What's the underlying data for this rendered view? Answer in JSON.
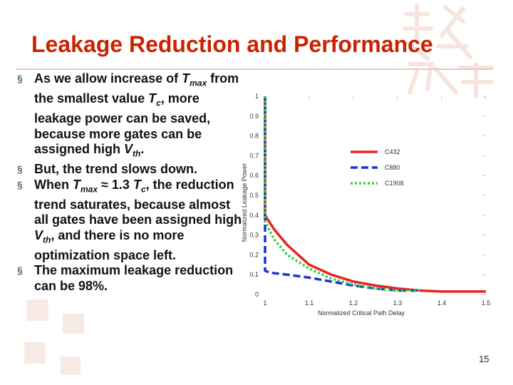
{
  "slide": {
    "title": "Leakage Reduction and Performance",
    "page_number": "15",
    "colors": {
      "title": "#cc2200",
      "text": "#111111",
      "bullet_marker": "#5a6a7a"
    }
  },
  "bullets": [
    {
      "parts": [
        {
          "t": "As we allow increase of "
        },
        {
          "t": "T",
          "i": true
        },
        {
          "t": "max",
          "i": true,
          "sub": true
        },
        {
          "t": " from the smallest value "
        },
        {
          "t": "T",
          "i": true
        },
        {
          "t": "c",
          "i": true,
          "sub": true
        },
        {
          "t": ", more leakage power can be saved, because more gates can be assigned high "
        },
        {
          "t": "V",
          "i": true
        },
        {
          "t": "th",
          "i": true,
          "sub": true
        },
        {
          "t": "."
        }
      ]
    },
    {
      "parts": [
        {
          "t": "But, the trend slows down."
        }
      ]
    },
    {
      "parts": [
        {
          "t": "When "
        },
        {
          "t": "T",
          "i": true
        },
        {
          "t": "max",
          "i": true,
          "sub": true
        },
        {
          "t": " ≈ 1.3 "
        },
        {
          "t": "T",
          "i": true
        },
        {
          "t": "c",
          "i": true,
          "sub": true
        },
        {
          "t": ", the reduction trend saturates, because almost all gates have been assigned high "
        },
        {
          "t": "V",
          "i": true
        },
        {
          "t": "th",
          "i": true,
          "sub": true
        },
        {
          "t": ", and there is no more optimization space left."
        }
      ]
    },
    {
      "parts": [
        {
          "t": "The maximum leakage reduction can be 98%."
        }
      ]
    }
  ],
  "chart_data": {
    "type": "line",
    "xlabel": "Normalized Critical Path Delay",
    "ylabel": "Normalized Leakage Power",
    "xlim": [
      1,
      1.5
    ],
    "ylim": [
      0,
      1
    ],
    "xticks": [
      "1",
      "1.1",
      "1.2",
      "1.3",
      "1.4",
      "1.5"
    ],
    "yticks": [
      "0",
      "0.1",
      "0.2",
      "0.3",
      "0.4",
      "0.5",
      "0.6",
      "0.7",
      "0.8",
      "0.9",
      "1"
    ],
    "legend": "upper-right",
    "series": [
      {
        "name": "C432",
        "color": "#e8231f",
        "dash": "solid",
        "x": [
          1.0,
          1.0,
          1.02,
          1.05,
          1.08,
          1.1,
          1.15,
          1.2,
          1.25,
          1.3,
          1.35,
          1.4,
          1.45,
          1.5
        ],
        "y": [
          1.0,
          0.4,
          0.33,
          0.25,
          0.19,
          0.15,
          0.1,
          0.065,
          0.045,
          0.03,
          0.02,
          0.015,
          0.015,
          0.015
        ]
      },
      {
        "name": "C880",
        "color": "#1f2fd6",
        "dash": "dash",
        "x": [
          1.0,
          1.0,
          1.01,
          1.05,
          1.1,
          1.15,
          1.2,
          1.25,
          1.3,
          1.35
        ],
        "y": [
          1.0,
          0.12,
          0.11,
          0.1,
          0.085,
          0.065,
          0.045,
          0.03,
          0.02,
          0.02
        ]
      },
      {
        "name": "C1908",
        "color": "#3ccf3c",
        "dash": "dot",
        "x": [
          1.0,
          1.0,
          1.02,
          1.05,
          1.1,
          1.15,
          1.2,
          1.25,
          1.3,
          1.35
        ],
        "y": [
          1.0,
          0.37,
          0.28,
          0.2,
          0.13,
          0.08,
          0.05,
          0.03,
          0.02,
          0.02
        ]
      }
    ]
  }
}
